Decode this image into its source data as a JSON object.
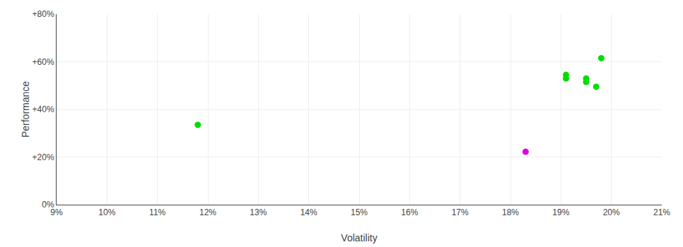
{
  "chart_data": {
    "type": "scatter",
    "xlabel": "Volatility",
    "ylabel": "Performance",
    "series": [
      {
        "color": "#00dd00",
        "x": [
          0.118,
          0.191,
          0.191,
          0.195,
          0.195,
          0.197,
          0.198
        ],
        "values": [
          0.335,
          0.545,
          0.53,
          0.53,
          0.515,
          0.495,
          0.615
        ]
      },
      {
        "color": "#dd00dd",
        "x": [
          0.183
        ],
        "values": [
          0.222
        ]
      }
    ],
    "xlim": [
      0.09,
      0.21
    ],
    "ylim": [
      0.0,
      0.8
    ],
    "xticks": [
      {
        "value": 0.09,
        "label": "9%"
      },
      {
        "value": 0.1,
        "label": "10%"
      },
      {
        "value": 0.11,
        "label": "11%"
      },
      {
        "value": 0.12,
        "label": "12%"
      },
      {
        "value": 0.13,
        "label": "13%"
      },
      {
        "value": 0.14,
        "label": "14%"
      },
      {
        "value": 0.15,
        "label": "15%"
      },
      {
        "value": 0.16,
        "label": "16%"
      },
      {
        "value": 0.17,
        "label": "17%"
      },
      {
        "value": 0.18,
        "label": "18%"
      },
      {
        "value": 0.19,
        "label": "19%"
      },
      {
        "value": 0.2,
        "label": "20%"
      },
      {
        "value": 0.21,
        "label": "21%"
      }
    ],
    "yticks": [
      {
        "value": 0.0,
        "label": "0%"
      },
      {
        "value": 0.2,
        "label": "+20%"
      },
      {
        "value": 0.4,
        "label": "+40%"
      },
      {
        "value": 0.6,
        "label": "+60%"
      },
      {
        "value": 0.8,
        "label": "+80%"
      }
    ],
    "grid": true
  }
}
